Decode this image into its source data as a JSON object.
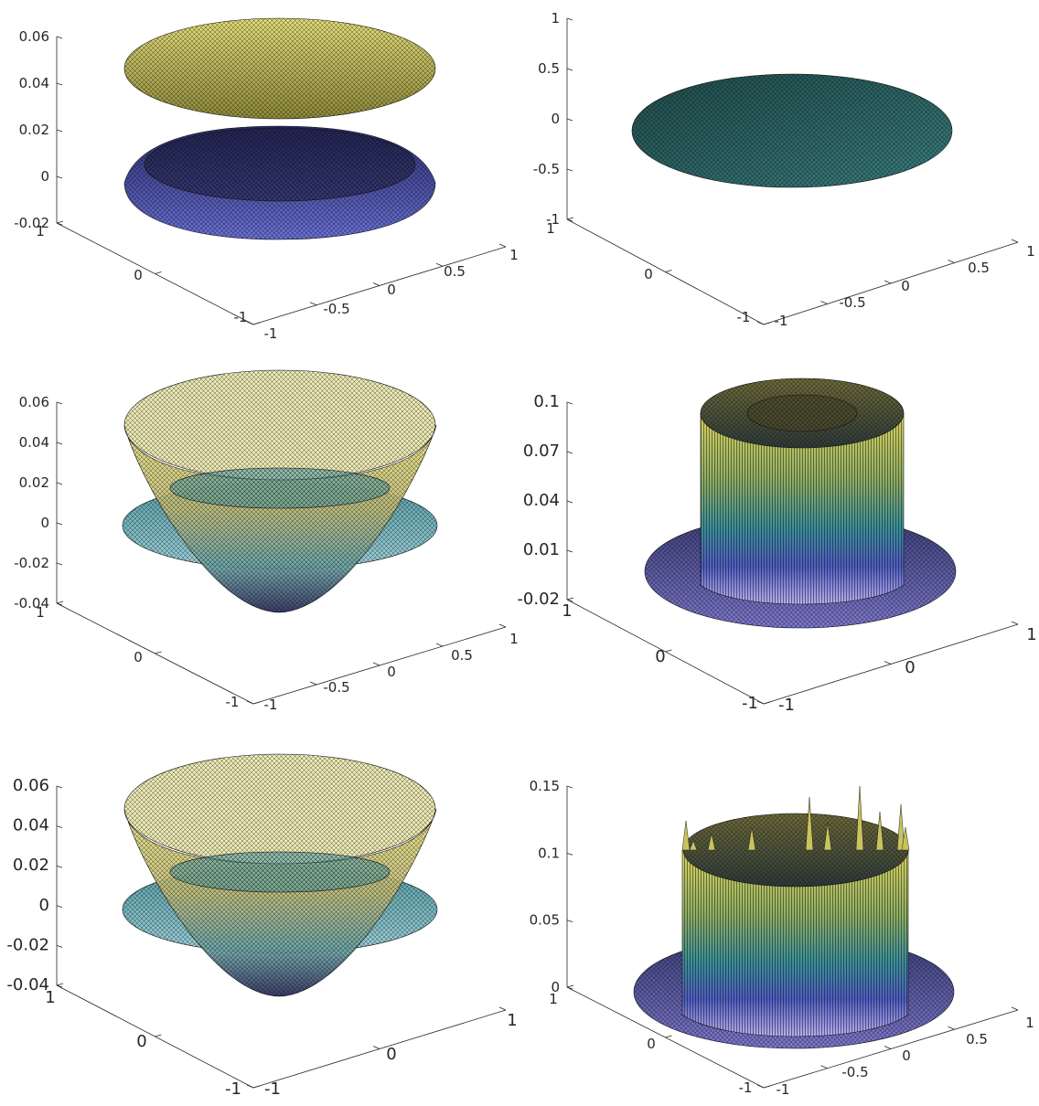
{
  "figure": {
    "colors": {
      "axis": "#262626",
      "mesh": "#101010",
      "c_yellow": "#e8e27a",
      "c_olive": "#a8a648",
      "c_teal": "#2f8a8a",
      "c_blue": "#3c3f9e",
      "c_navy": "#2a2d6a",
      "c_lav": "#a9a2ea",
      "c_cyan": "#5ab6c0"
    }
  },
  "chart_data": [
    {
      "type": "surface",
      "panel": "top-left",
      "zlim": [
        -0.02,
        0.06
      ],
      "z_ticks": [
        "0.06",
        "0.04",
        "0.02",
        "0",
        "-0.02"
      ],
      "x_ticks": [
        "-1",
        "-0.5",
        "0",
        "0.5",
        "1"
      ],
      "y_ticks": [
        "-1",
        "0",
        "1"
      ],
      "surfaces": [
        {
          "shape": "disk",
          "z_level": 0.045,
          "color": "yellow"
        },
        {
          "shape": "dome",
          "z_rim": -0.002,
          "z_center": 0.012,
          "color": "blue"
        }
      ]
    },
    {
      "type": "surface",
      "panel": "top-right",
      "zlim": [
        -1,
        1
      ],
      "z_ticks": [
        "1",
        "0.5",
        "0",
        "-0.5",
        "-1"
      ],
      "x_ticks": [
        "-1",
        "-0.5",
        "0",
        "0.5",
        "1"
      ],
      "y_ticks": [
        "-1",
        "0",
        "1"
      ],
      "surfaces": [
        {
          "shape": "disk",
          "z_level": 0,
          "color": "teal"
        }
      ]
    },
    {
      "type": "surface",
      "panel": "middle-left",
      "zlim": [
        -0.04,
        0.06
      ],
      "z_ticks": [
        "0.06",
        "0.04",
        "0.02",
        "0",
        "-0.02",
        "-0.04"
      ],
      "x_ticks": [
        "-1",
        "-0.5",
        "0",
        "0.5",
        "1"
      ],
      "y_ticks": [
        "-1",
        "0",
        "1"
      ],
      "surfaces": [
        {
          "shape": "bowl",
          "z_rim": 0.058,
          "z_center": -0.04,
          "color": "olive"
        },
        {
          "shape": "disk",
          "z_level": 0.0,
          "color": "cyan"
        }
      ]
    },
    {
      "type": "surface",
      "panel": "middle-right",
      "zlim": [
        -0.02,
        0.1
      ],
      "z_ticks": [
        "0.1",
        "0.07",
        "0.04",
        "0.01",
        "-0.02"
      ],
      "x_ticks": [
        "-1",
        "0",
        "1"
      ],
      "y_ticks": [
        "-1",
        "0",
        "1"
      ],
      "surfaces": [
        {
          "shape": "disk",
          "z_level": -0.02,
          "color": "navy"
        },
        {
          "shape": "cylinder",
          "z_base": -0.02,
          "z_top": 0.1,
          "radius": 0.62,
          "color": "olive"
        }
      ]
    },
    {
      "type": "surface",
      "panel": "bottom-left",
      "zlim": [
        -0.04,
        0.06
      ],
      "z_ticks": [
        "0.06",
        "0.04",
        "0.02",
        "0",
        "-0.02",
        "-0.04"
      ],
      "x_ticks": [
        "-1",
        "0",
        "1"
      ],
      "y_ticks": [
        "-1",
        "0",
        "1"
      ],
      "surfaces": [
        {
          "shape": "bowl",
          "z_rim": 0.058,
          "z_center": -0.03,
          "color": "olive"
        },
        {
          "shape": "disk",
          "z_level": 0.0,
          "color": "cyan"
        }
      ]
    },
    {
      "type": "surface",
      "panel": "bottom-right",
      "zlim": [
        0,
        0.15
      ],
      "z_ticks": [
        "0.15",
        "0.1",
        "0.05",
        "0"
      ],
      "x_ticks": [
        "-1",
        "-0.5",
        "0",
        "0.5",
        "1"
      ],
      "y_ticks": [
        "-1",
        "0",
        "1"
      ],
      "surfaces": [
        {
          "shape": "disk",
          "z_level": 0,
          "color": "navy"
        },
        {
          "shape": "cylinder",
          "z_base": 0,
          "z_top": 0.1,
          "radius": 0.62,
          "color": "olive"
        }
      ]
    }
  ]
}
